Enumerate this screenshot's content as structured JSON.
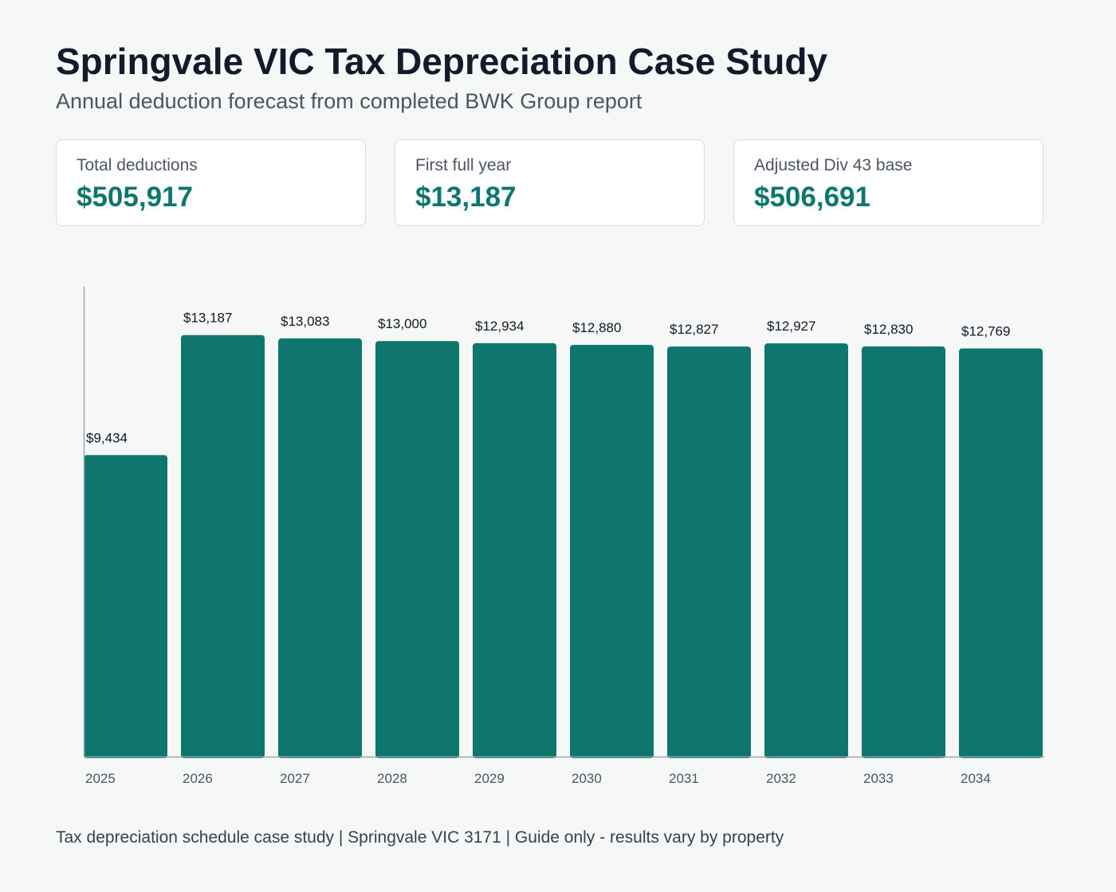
{
  "header": {
    "title": "Springvale VIC Tax Depreciation Case Study",
    "subtitle": "Annual deduction forecast from completed BWK Group report"
  },
  "stats": [
    {
      "label": "Total deductions",
      "value": "$505,917"
    },
    {
      "label": "First full year",
      "value": "$13,187"
    },
    {
      "label": "Adjusted Div 43 base",
      "value": "$506,691"
    }
  ],
  "colors": {
    "bar": "#0f766e",
    "accent": "#0f766e",
    "axis": "#9ca3af"
  },
  "chart_data": {
    "type": "bar",
    "categories": [
      "2025",
      "2026",
      "2027",
      "2028",
      "2029",
      "2030",
      "2031",
      "2032",
      "2033",
      "2034"
    ],
    "values": [
      9434,
      13187,
      13083,
      13000,
      12934,
      12880,
      12827,
      12927,
      12830,
      12769
    ],
    "data_labels": [
      "$9,434",
      "$13,187",
      "$13,083",
      "$13,000",
      "$12,934",
      "$12,880",
      "$12,827",
      "$12,927",
      "$12,830",
      "$12,769"
    ],
    "title": "",
    "xlabel": "",
    "ylabel": "",
    "ylim": [
      0,
      14700
    ],
    "grid": false,
    "legend": "none"
  },
  "footer": {
    "text": "Tax depreciation schedule case study | Springvale VIC 3171 | Guide only - results vary by property"
  }
}
